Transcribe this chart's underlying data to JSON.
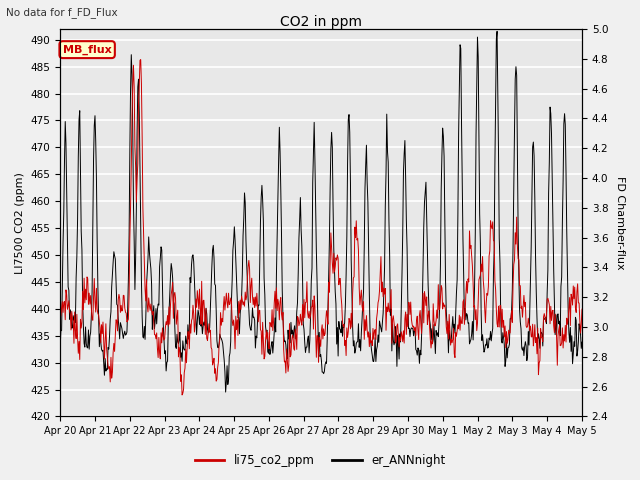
{
  "title": "CO2 in ppm",
  "top_label": "No data for f_FD_Flux",
  "ylabel_left": "LI7500 CO2 (ppm)",
  "ylabel_right": "FD Chamber-flux",
  "ylim_left": [
    420,
    492
  ],
  "ylim_right": [
    2.4,
    5.0
  ],
  "yticks_left": [
    420,
    425,
    430,
    435,
    440,
    445,
    450,
    455,
    460,
    465,
    470,
    475,
    480,
    485,
    490
  ],
  "yticks_right": [
    2.4,
    2.6,
    2.8,
    3.0,
    3.2,
    3.4,
    3.6,
    3.8,
    4.0,
    4.2,
    4.4,
    4.6,
    4.8,
    5.0
  ],
  "xtick_labels": [
    "Apr 20",
    "Apr 21",
    "Apr 22",
    "Apr 23",
    "Apr 24",
    "Apr 25",
    "Apr 26",
    "Apr 27",
    "Apr 28",
    "Apr 29",
    "Apr 30",
    "May 1",
    "May 2",
    "May 3",
    "May 4",
    "May 5"
  ],
  "legend_entries": [
    "li75_co2_ppm",
    "er_ANNnight"
  ],
  "legend_colors": [
    "#cc0000",
    "#000000"
  ],
  "MB_flux_box_color": "#cc0000",
  "background_color": "#e8e8e8",
  "grid_color": "#ffffff",
  "line_color_red": "#cc0000",
  "line_color_black": "#000000",
  "fig_width": 6.4,
  "fig_height": 4.8,
  "dpi": 100
}
